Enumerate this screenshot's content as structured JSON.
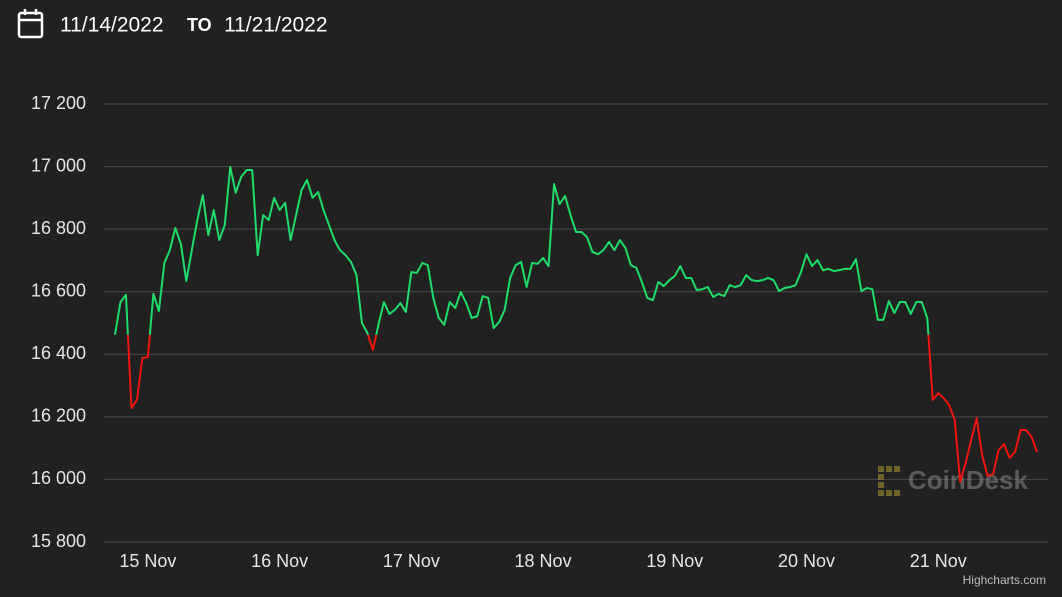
{
  "header": {
    "from": "11/14/2022",
    "to_label": "TO",
    "to": "11/21/2022"
  },
  "chart_data": {
    "type": "line",
    "watermark": "CoinDesk",
    "credits": "Highcharts.com",
    "colors": {
      "up": "#1fdc6a",
      "down": "#f0140c"
    },
    "grid": true,
    "xlim": [
      -2,
      170
    ],
    "xticks": [
      {
        "value": 6,
        "label": "15 Nov"
      },
      {
        "value": 30,
        "label": "16 Nov"
      },
      {
        "value": 54,
        "label": "17 Nov"
      },
      {
        "value": 78,
        "label": "18 Nov"
      },
      {
        "value": 102,
        "label": "19 Nov"
      },
      {
        "value": 126,
        "label": "20 Nov"
      },
      {
        "value": 150,
        "label": "21 Nov"
      }
    ],
    "ylim": [
      15800,
      17200
    ],
    "yticks": [
      {
        "value": 15800,
        "label": "15 800"
      },
      {
        "value": 16000,
        "label": "16 000"
      },
      {
        "value": 16200,
        "label": "16 200"
      },
      {
        "value": 16400,
        "label": "16 400"
      },
      {
        "value": 16600,
        "label": "16 600"
      },
      {
        "value": 16800,
        "label": "16 800"
      },
      {
        "value": 17000,
        "label": "17 000"
      },
      {
        "value": 17200,
        "label": "17 200"
      }
    ],
    "values": [
      16462,
      16567,
      16590,
      16228,
      16254,
      16388,
      16391,
      16593,
      16538,
      16692,
      16733,
      16804,
      16753,
      16634,
      16733,
      16829,
      16909,
      16781,
      16861,
      16765,
      16813,
      16999,
      16916,
      16967,
      16989,
      16989,
      16717,
      16845,
      16829,
      16900,
      16861,
      16884,
      16765,
      16845,
      16925,
      16957,
      16900,
      16919,
      16861,
      16813,
      16765,
      16733,
      16717,
      16695,
      16653,
      16500,
      16468,
      16414,
      16494,
      16567,
      16529,
      16542,
      16564,
      16535,
      16663,
      16660,
      16692,
      16685,
      16580,
      16516,
      16494,
      16567,
      16548,
      16599,
      16564,
      16516,
      16522,
      16586,
      16580,
      16484,
      16503,
      16542,
      16644,
      16685,
      16695,
      16615,
      16692,
      16689,
      16708,
      16682,
      16944,
      16880,
      16906,
      16845,
      16791,
      16791,
      16775,
      16727,
      16720,
      16733,
      16759,
      16733,
      16765,
      16740,
      16685,
      16676,
      16631,
      16580,
      16573,
      16631,
      16618,
      16637,
      16650,
      16682,
      16644,
      16644,
      16605,
      16608,
      16615,
      16583,
      16593,
      16586,
      16621,
      16615,
      16621,
      16653,
      16637,
      16634,
      16637,
      16644,
      16637,
      16602,
      16612,
      16615,
      16621,
      16663,
      16720,
      16682,
      16701,
      16669,
      16673,
      16666,
      16669,
      16673,
      16673,
      16704,
      16602,
      16612,
      16608,
      16510,
      16510,
      16570,
      16532,
      16567,
      16567,
      16529,
      16567,
      16567,
      16516,
      16254,
      16276,
      16260,
      16238,
      16190,
      15992,
      16053,
      16126,
      16196,
      16078,
      16011,
      16017,
      16094,
      16113,
      16069,
      16088,
      16158,
      16158,
      16136,
      16088
    ]
  }
}
